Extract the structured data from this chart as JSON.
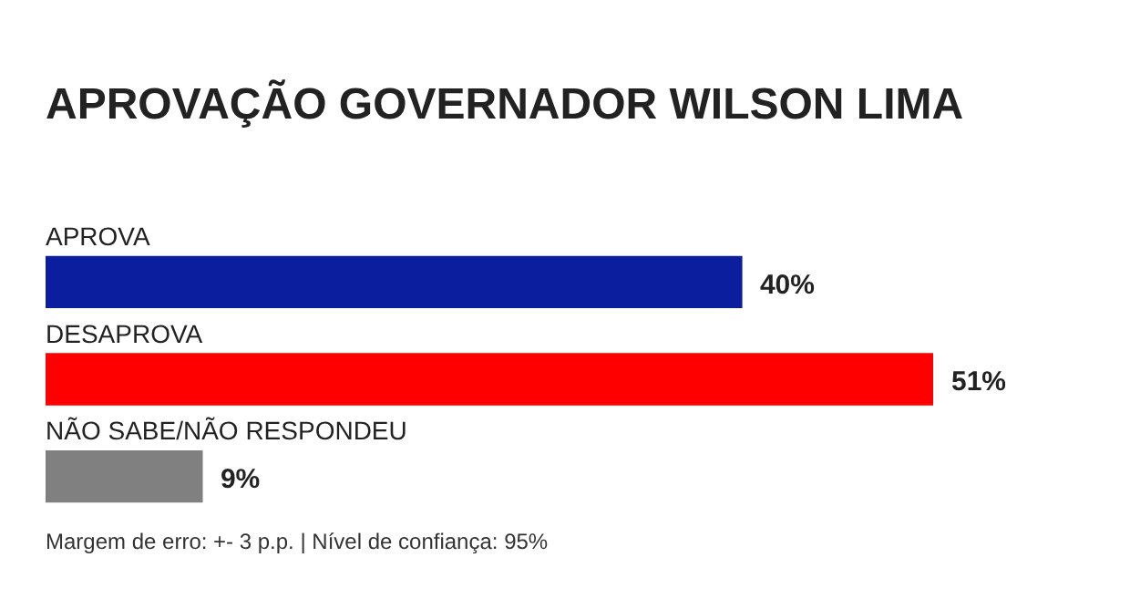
{
  "chart_data": {
    "type": "bar",
    "orientation": "horizontal",
    "title": "APROVAÇÃO GOVERNADOR WILSON LIMA",
    "categories": [
      "APROVA",
      "DESAPROVA",
      "NÃO SABE/NÃO RESPONDEU"
    ],
    "values": [
      40,
      51,
      9
    ],
    "colors": [
      "#0b1e9e",
      "#ff0000",
      "#808080"
    ],
    "value_labels": [
      "40%",
      "51%",
      "9%"
    ],
    "legend": false,
    "annotations": [
      "Margem de erro: +- 3 p.p. | Nível de confiança: 95%"
    ]
  }
}
